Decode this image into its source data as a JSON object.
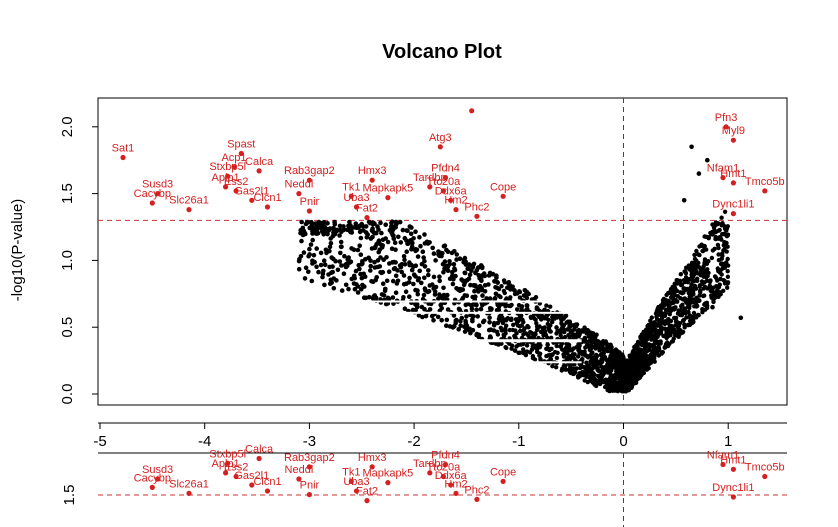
{
  "chart_data": {
    "type": "scatter",
    "title": "Volcano Plot",
    "xlabel": "",
    "ylabel": "-log10(P-value)",
    "xlim": [
      -5.0,
      1.6
    ],
    "ylim": [
      0.0,
      2.2
    ],
    "x_ticks": [
      -5,
      -4,
      -3,
      -2,
      -1,
      0,
      1
    ],
    "y_ticks": [
      0.0,
      0.5,
      1.0,
      1.5,
      2.0
    ],
    "x_tick_labels": [
      "-5",
      "-4",
      "-3",
      "-2",
      "-1",
      "0",
      "1"
    ],
    "y_tick_labels": [
      "0.0",
      "0.5",
      "1.0",
      "1.5",
      "2.0"
    ],
    "threshold_p": 1.3,
    "threshold_fc": 0,
    "grid": false,
    "colors": {
      "significant": "#d42020",
      "nonsignificant": "#000000",
      "threshold_line": "#c83232",
      "zero_line": "#3a3aa0"
    },
    "significant_genes": [
      {
        "name": "Sat1",
        "x": -4.78,
        "y": 1.77
      },
      {
        "name": "Spast",
        "x": -3.65,
        "y": 1.8
      },
      {
        "name": "Calca",
        "x": -3.48,
        "y": 1.67
      },
      {
        "name": "Acp1",
        "x": -3.72,
        "y": 1.7
      },
      {
        "name": "Susd3",
        "x": -4.45,
        "y": 1.5
      },
      {
        "name": "Cacybp",
        "x": -4.5,
        "y": 1.43
      },
      {
        "name": "Slc26a1",
        "x": -4.15,
        "y": 1.38
      },
      {
        "name": "Stxbp5l",
        "x": -3.78,
        "y": 1.63
      },
      {
        "name": "Aplp1",
        "x": -3.8,
        "y": 1.55
      },
      {
        "name": "Ess2",
        "x": -3.7,
        "y": 1.52
      },
      {
        "name": "Gas2l1",
        "x": -3.55,
        "y": 1.45
      },
      {
        "name": "Clcn1",
        "x": -3.4,
        "y": 1.4
      },
      {
        "name": "Rab3gap2",
        "x": -3.0,
        "y": 1.6
      },
      {
        "name": "Neddl",
        "x": -3.1,
        "y": 1.5
      },
      {
        "name": "Pnir",
        "x": -3.0,
        "y": 1.37
      },
      {
        "name": "Tk1",
        "x": -2.6,
        "y": 1.48
      },
      {
        "name": "Hmx3",
        "x": -2.4,
        "y": 1.6
      },
      {
        "name": "Uba3",
        "x": -2.55,
        "y": 1.4
      },
      {
        "name": "Mapkapk5",
        "x": -2.25,
        "y": 1.47
      },
      {
        "name": "Fat2",
        "x": -2.45,
        "y": 1.32
      },
      {
        "name": "Atg3",
        "x": -1.75,
        "y": 1.85
      },
      {
        "name": "Tardbp",
        "x": -1.85,
        "y": 1.55
      },
      {
        "name": "Pfdn4",
        "x": -1.7,
        "y": 1.62
      },
      {
        "name": "Ttc20a",
        "x": -1.72,
        "y": 1.52
      },
      {
        "name": "Ddx6a",
        "x": -1.65,
        "y": 1.45
      },
      {
        "name": "Hm2",
        "x": -1.6,
        "y": 1.38
      },
      {
        "name": "Cope",
        "x": -1.15,
        "y": 1.48
      },
      {
        "name": "Phc2",
        "x": -1.4,
        "y": 1.33
      },
      {
        "name": "Pfn3",
        "x": 0.98,
        "y": 2.0
      },
      {
        "name": "Myl9",
        "x": 1.05,
        "y": 1.9
      },
      {
        "name": "Nfam1",
        "x": 0.95,
        "y": 1.62
      },
      {
        "name": "Tmco5b",
        "x": 1.35,
        "y": 1.52
      },
      {
        "name": "Hmt1",
        "x": 1.05,
        "y": 1.58
      },
      {
        "name": "Dync1li1",
        "x": 1.05,
        "y": 1.35
      }
    ]
  }
}
